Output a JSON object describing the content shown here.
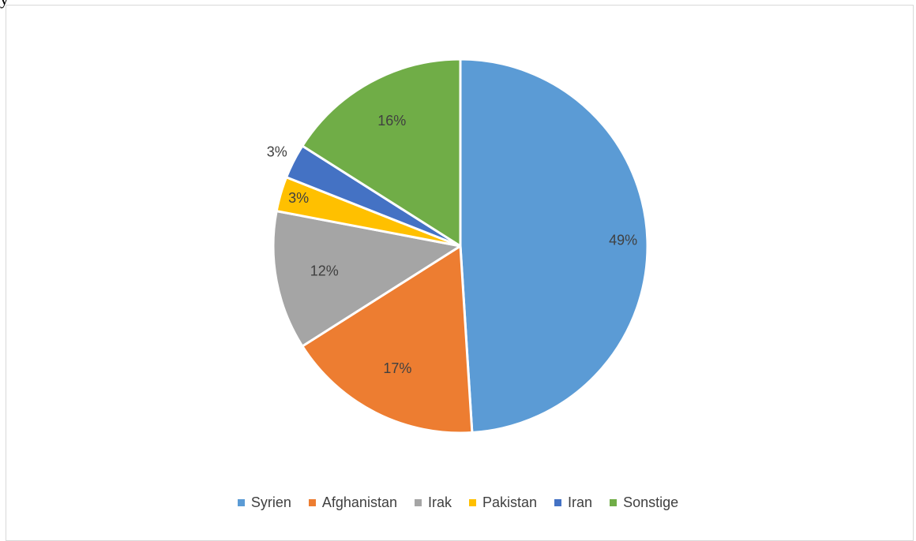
{
  "chart_data": {
    "type": "pie",
    "title": "",
    "categories": [
      "Syrien",
      "Afghanistan",
      "Irak",
      "Pakistan",
      "Iran",
      "Sonstige"
    ],
    "values": [
      49,
      17,
      12,
      3,
      3,
      16
    ],
    "labels": [
      "49%",
      "17%",
      "12%",
      "3%",
      "3%",
      "16%"
    ],
    "colors": [
      "#5b9bd5",
      "#ed7d31",
      "#a5a5a5",
      "#ffc000",
      "#4472c4",
      "#70ad47"
    ],
    "legend_position": "bottom",
    "start_angle": "top, clockwise"
  },
  "legend": {
    "items": [
      {
        "label": "Syrien",
        "color": "#5b9bd5"
      },
      {
        "label": "Afghanistan",
        "color": "#ed7d31"
      },
      {
        "label": "Irak",
        "color": "#a5a5a5"
      },
      {
        "label": "Pakistan",
        "color": "#ffc000"
      },
      {
        "label": "Iran",
        "color": "#4472c4"
      },
      {
        "label": "Sonstige",
        "color": "#70ad47"
      }
    ]
  },
  "page": {
    "crop_text": "y"
  }
}
